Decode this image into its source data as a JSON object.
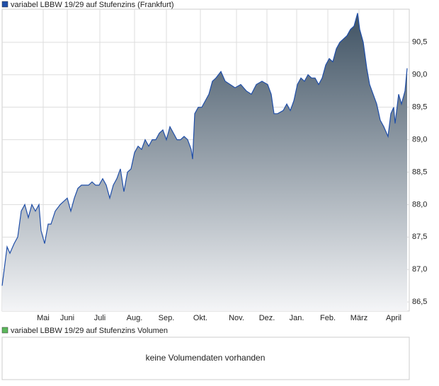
{
  "chart_data": {
    "type": "area",
    "series": [
      {
        "name": "variabel LBBW 19/29 auf Stufenzins (Frankfurt)",
        "color": "#1f4ea8",
        "values": [
          86.75,
          87.35,
          87.25,
          87.4,
          87.5,
          87.9,
          88.0,
          87.8,
          88.0,
          87.9,
          88.0,
          87.6,
          87.4,
          87.7,
          87.7,
          87.9,
          88.0,
          88.05,
          88.1,
          87.9,
          88.1,
          88.25,
          88.3,
          88.3,
          88.3,
          88.35,
          88.3,
          88.3,
          88.4,
          88.3,
          88.1,
          88.3,
          88.4,
          88.55,
          88.2,
          88.5,
          88.55,
          88.8,
          88.9,
          88.85,
          89.0,
          88.9,
          89.0,
          89.0,
          89.1,
          89.15,
          89.0,
          89.2,
          89.1,
          89.0,
          89.0,
          89.05,
          89.0,
          88.85,
          88.7,
          89.4,
          89.5,
          89.5,
          89.6,
          89.7,
          89.9,
          89.95,
          90.05,
          89.9,
          89.85,
          89.8,
          89.85,
          89.75,
          89.7,
          89.85,
          89.9,
          89.85,
          89.7,
          89.4,
          89.4,
          89.45,
          89.55,
          89.45,
          89.6,
          89.85,
          89.95,
          89.9,
          90.0,
          89.95,
          89.95,
          89.85,
          89.95,
          90.15,
          90.25,
          90.2,
          90.4,
          90.5,
          90.55,
          90.6,
          90.7,
          90.75,
          90.95,
          90.7,
          90.5,
          90.1,
          89.85,
          89.7,
          89.55,
          89.3,
          89.2,
          89.05,
          89.4,
          89.5,
          89.25,
          89.7,
          89.55,
          89.75,
          90.1
        ]
      }
    ],
    "x": [
      3,
      10,
      14,
      20,
      25,
      30,
      35,
      40,
      45,
      50,
      55,
      58,
      63,
      68,
      72,
      78,
      85,
      90,
      95,
      100,
      105,
      110,
      115,
      120,
      125,
      130,
      135,
      140,
      145,
      150,
      155,
      160,
      165,
      170,
      175,
      180,
      185,
      190,
      195,
      200,
      205,
      210,
      215,
      220,
      225,
      230,
      235,
      240,
      245,
      250,
      255,
      260,
      265,
      270,
      272,
      275,
      280,
      285,
      290,
      295,
      300,
      305,
      312,
      318,
      325,
      332,
      340,
      348,
      355,
      362,
      370,
      378,
      383,
      387,
      392,
      400,
      405,
      410,
      415,
      420,
      425,
      430,
      435,
      440,
      445,
      450,
      455,
      460,
      465,
      470,
      475,
      480,
      485,
      490,
      495,
      500,
      505,
      508,
      513,
      518,
      522,
      527,
      532,
      537,
      542,
      548,
      552,
      556,
      558,
      563,
      567,
      572,
      575
    ],
    "xlim": [
      3,
      578
    ],
    "xticks": [
      {
        "value": 61,
        "label": "Mai"
      },
      {
        "value": 95,
        "label": "Juni"
      },
      {
        "value": 141,
        "label": "Juli"
      },
      {
        "value": 190,
        "label": "Aug."
      },
      {
        "value": 235,
        "label": "Sep."
      },
      {
        "value": 283,
        "label": "Okt."
      },
      {
        "value": 334,
        "label": "Nov."
      },
      {
        "value": 377,
        "label": "Dez."
      },
      {
        "value": 419,
        "label": "Jan."
      },
      {
        "value": 463,
        "label": "Feb."
      },
      {
        "value": 507,
        "label": "März"
      },
      {
        "value": 556,
        "label": "April"
      }
    ],
    "ylim": [
      86.36,
      91.01
    ],
    "yticks": [
      {
        "value": 86.5,
        "label": "86,5"
      },
      {
        "value": 87,
        "label": "87,0"
      },
      {
        "value": 87.5,
        "label": "87,5"
      },
      {
        "value": 88,
        "label": "88,0"
      },
      {
        "value": 88.5,
        "label": "88,5"
      },
      {
        "value": 89,
        "label": "89,0"
      },
      {
        "value": 89.5,
        "label": "89,5"
      },
      {
        "value": 90,
        "label": "90,0"
      },
      {
        "value": 90.5,
        "label": "90,5"
      }
    ],
    "grid": true
  },
  "volume_panel": {
    "legend": "variabel LBBW 19/29 auf Stufenzins Volumen",
    "legend_color": "#5cb85c",
    "message": "keine Volumendaten vorhanden"
  }
}
